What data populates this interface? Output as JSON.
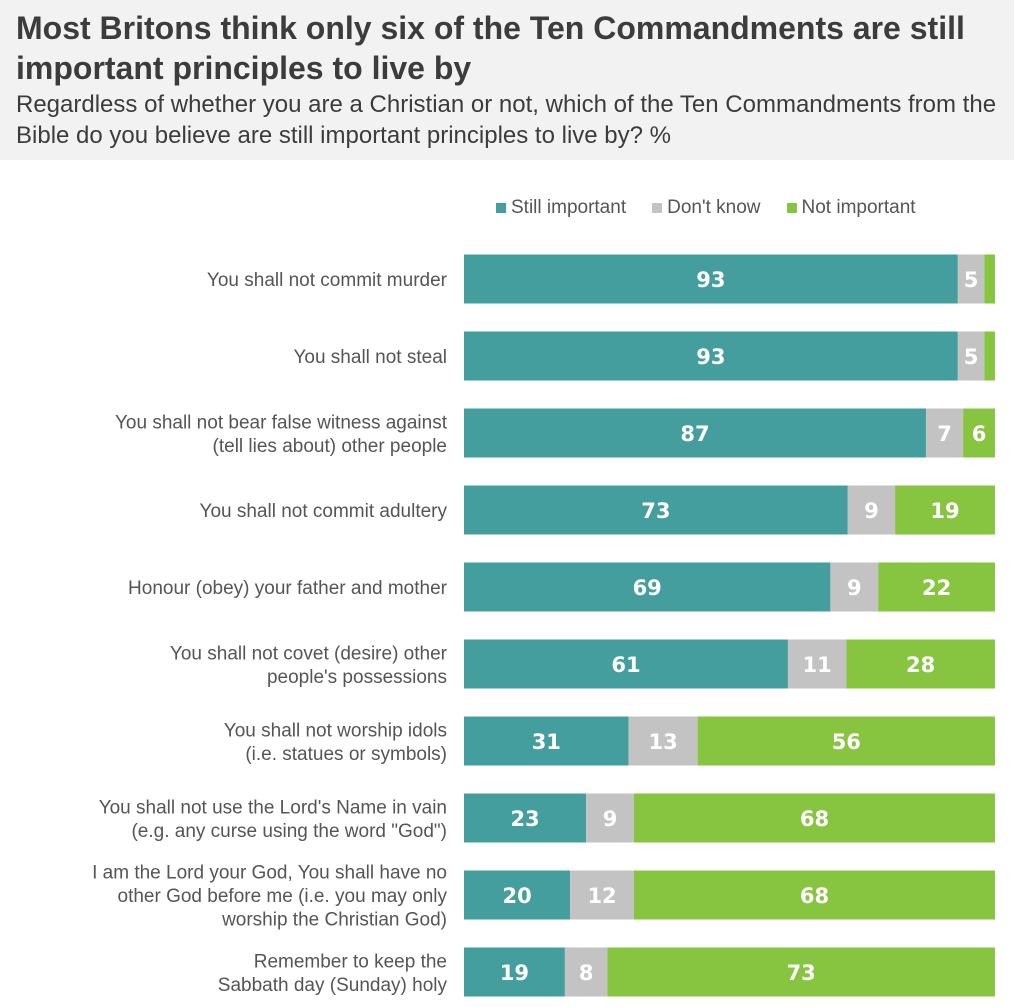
{
  "header": {
    "title": "Most Britons think only six of the Ten Commandments are still important principles to live by",
    "subtitle": "Regardless of whether you are a Christian or not, which of the Ten Commandments from the Bible do you believe are still important principles to live by? %"
  },
  "colors": {
    "still_important": "#459e9e",
    "dont_know": "#c3c3c3",
    "not_important": "#87c440",
    "header_bg": "#f2f2f2"
  },
  "chart_data": {
    "type": "bar",
    "orientation": "horizontal",
    "stacked": true,
    "title": "Most Britons think only six of the Ten Commandments are still important principles to live by",
    "subtitle": "Regardless of whether you are a Christian or not, which of the Ten Commandments from the Bible do you believe are still important principles to live by? %",
    "xlim": [
      0,
      100
    ],
    "grid": false,
    "legend_position": "top",
    "categories": [
      "You shall not commit murder",
      "You shall not steal",
      "You shall not bear false witness against (tell lies about) other people",
      "You shall not commit adultery",
      "Honour (obey) your father and mother",
      "You shall not covet (desire) other people's possessions",
      "You shall not worship idols (i.e. statues or symbols)",
      "You shall not use the Lord's Name in vain (e.g. any curse using the word \"God\")",
      "I am the Lord your God, You shall have no other God before me (i.e. you may only worship the Christian God)",
      "Remember to keep the Sabbath day (Sunday) holy"
    ],
    "category_lines": [
      [
        "You shall not commit murder"
      ],
      [
        "You shall not steal"
      ],
      [
        "You shall not bear false witness against",
        "(tell lies about) other people"
      ],
      [
        "You shall not commit adultery"
      ],
      [
        "Honour (obey) your father and mother"
      ],
      [
        "You shall not covet (desire) other",
        "people's possessions"
      ],
      [
        "You shall not worship idols",
        "(i.e. statues or symbols)"
      ],
      [
        "You shall not use the Lord's Name in vain",
        "(e.g. any curse using the word \"God\")"
      ],
      [
        "I am the Lord your God, You shall have no",
        "other God before me (i.e. you may only",
        "worship the Christian God)"
      ],
      [
        "Remember to keep the",
        "Sabbath day (Sunday) holy"
      ]
    ],
    "series": [
      {
        "name": "Still important",
        "color": "#459e9e",
        "values": [
          93,
          93,
          87,
          73,
          69,
          61,
          31,
          23,
          20,
          19
        ]
      },
      {
        "name": "Don't know",
        "color": "#c3c3c3",
        "values": [
          5,
          5,
          7,
          9,
          9,
          11,
          13,
          9,
          12,
          8
        ]
      },
      {
        "name": "Not important",
        "color": "#87c440",
        "values": [
          2,
          2,
          6,
          19,
          22,
          28,
          56,
          68,
          68,
          73
        ]
      }
    ],
    "data_labels": [
      [
        "93",
        "5",
        ""
      ],
      [
        "93",
        "5",
        ""
      ],
      [
        "87",
        "7",
        "6"
      ],
      [
        "73",
        "9",
        "19"
      ],
      [
        "69",
        "9",
        "22"
      ],
      [
        "61",
        "11",
        "28"
      ],
      [
        "31",
        "13",
        "56"
      ],
      [
        "23",
        "9",
        "68"
      ],
      [
        "20",
        "12",
        "68"
      ],
      [
        "19",
        "8",
        "73"
      ]
    ]
  }
}
